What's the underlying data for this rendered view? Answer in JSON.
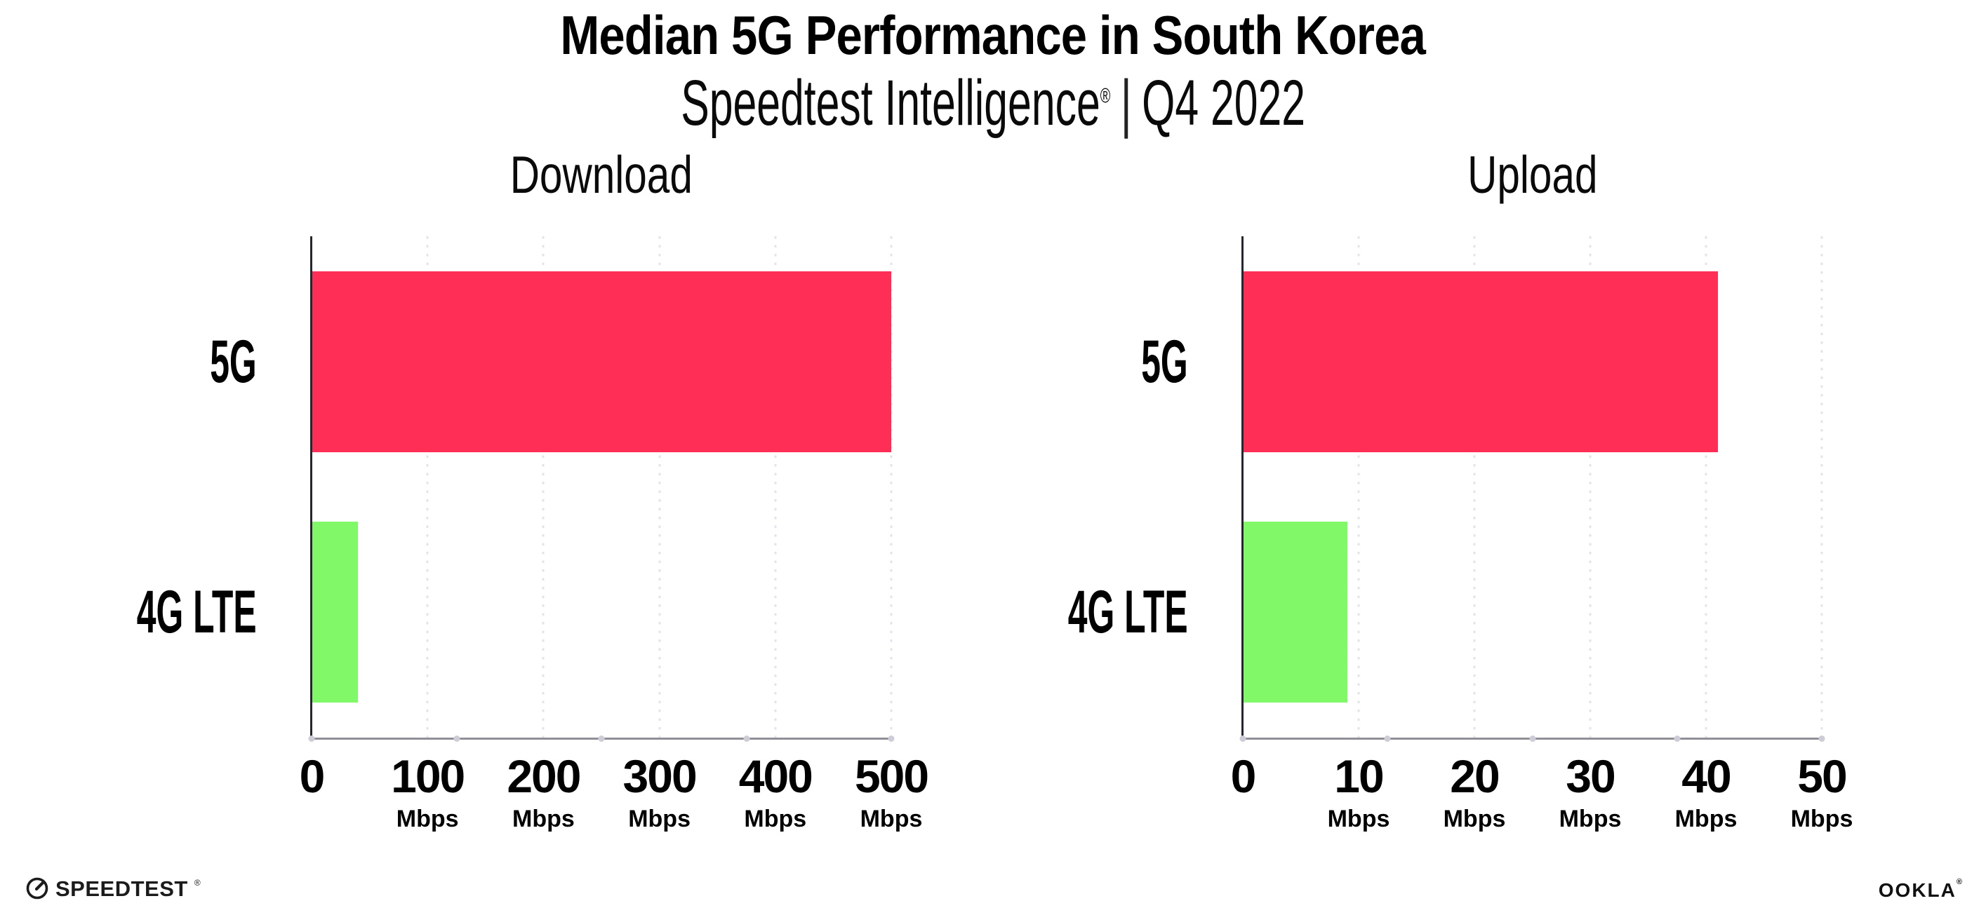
{
  "header": {
    "title": "Median 5G Performance in South Korea",
    "subtitle_brand": "Speedtest Intelligence",
    "subtitle_reg": "®",
    "subtitle_sep": "|",
    "subtitle_period": "Q4 2022"
  },
  "chart_data": [
    {
      "type": "bar",
      "orientation": "horizontal",
      "title": "Download",
      "categories": [
        "5G",
        "4G LTE"
      ],
      "values": [
        500,
        40
      ],
      "unit": "Mbps",
      "xlim": [
        0,
        500
      ],
      "xticks": [
        0,
        100,
        200,
        300,
        400,
        500
      ],
      "tick_unit_label": "Mbps",
      "bar_colors": [
        "#ff2e56",
        "#80f868"
      ],
      "grid": "vertical-dotted",
      "legend": "none"
    },
    {
      "type": "bar",
      "orientation": "horizontal",
      "title": "Upload",
      "categories": [
        "5G",
        "4G LTE"
      ],
      "values": [
        41,
        9
      ],
      "unit": "Mbps",
      "xlim": [
        0,
        50
      ],
      "xticks": [
        0,
        10,
        20,
        30,
        40,
        50
      ],
      "tick_unit_label": "Mbps",
      "bar_colors": [
        "#ff2e56",
        "#80f868"
      ],
      "grid": "vertical-dotted",
      "legend": "none"
    }
  ],
  "colors": {
    "bar_5g": "#ff2e56",
    "bar_4g_lte": "#80f868",
    "gridline": "#e3e3ed",
    "x_axis": "#8f8f97",
    "y_axis": "#26262e",
    "text": "#000000",
    "background": "#ffffff"
  },
  "footer": {
    "speedtest": "SPEEDTEST",
    "speedtest_reg": "®",
    "ookla": "OOKLA",
    "ookla_reg": "®"
  }
}
